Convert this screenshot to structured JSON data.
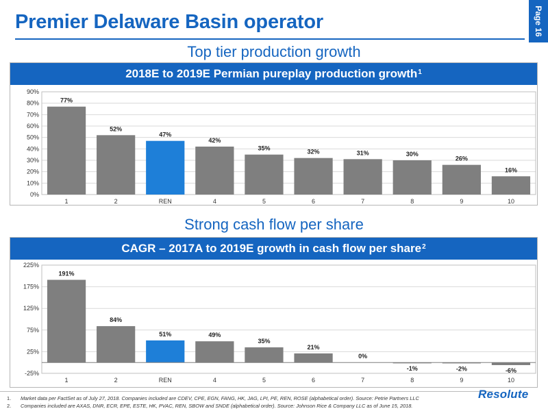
{
  "header": {
    "title": "Premier Delaware Basin operator",
    "page_label": "Page 16"
  },
  "sections": [
    {
      "heading": "Top tier production growth"
    },
    {
      "heading": "Strong cash flow per share"
    }
  ],
  "chart_data": [
    {
      "type": "bar",
      "title": "2018E to 2019E Permian pureplay production growth",
      "title_footnote": "1",
      "categories": [
        "1",
        "2",
        "REN",
        "4",
        "5",
        "6",
        "7",
        "8",
        "9",
        "10"
      ],
      "values": [
        77,
        52,
        47,
        42,
        35,
        32,
        31,
        30,
        26,
        16
      ],
      "value_labels": [
        "77%",
        "52%",
        "47%",
        "42%",
        "35%",
        "32%",
        "31%",
        "30%",
        "26%",
        "16%"
      ],
      "yticks": [
        0,
        10,
        20,
        30,
        40,
        50,
        60,
        70,
        80,
        90
      ],
      "ytick_labels": [
        "0%",
        "10%",
        "20%",
        "30%",
        "40%",
        "50%",
        "60%",
        "70%",
        "80%",
        "90%"
      ],
      "ylim": [
        0,
        90
      ],
      "highlight_category": "REN",
      "grid": true,
      "legend": false
    },
    {
      "type": "bar",
      "title": "CAGR – 2017A to 2019E growth in cash flow per share",
      "title_footnote": "2",
      "categories": [
        "1",
        "2",
        "REN",
        "4",
        "5",
        "6",
        "7",
        "8",
        "9",
        "10"
      ],
      "values": [
        191,
        84,
        51,
        49,
        35,
        21,
        0,
        -1,
        -2,
        -6
      ],
      "value_labels": [
        "191%",
        "84%",
        "51%",
        "49%",
        "35%",
        "21%",
        "0%",
        "-1%",
        "-2%",
        "-6%"
      ],
      "yticks": [
        -25,
        25,
        75,
        125,
        175,
        225
      ],
      "ytick_labels": [
        "-25%",
        "25%",
        "75%",
        "125%",
        "175%",
        "225%"
      ],
      "ylim": [
        -25,
        225
      ],
      "highlight_category": "REN",
      "grid": true,
      "legend": false
    }
  ],
  "colors": {
    "brand_blue": "#1565c0",
    "bar_gray": "#7f7f7f",
    "bar_highlight": "#1e7fd8",
    "grid": "#d9d9d9"
  },
  "footnotes": [
    {
      "num": "1.",
      "text": "Market data per FactSet as of July 27, 2018. Companies included are CDEV, CPE, EGN, FANG, HK, JAG, LPI, PE, REN, ROSE (alphabetical order). Source: Petrie Partners LLC"
    },
    {
      "num": "2.",
      "text": "Companies included are AXAS, DNR, ECR, EPE, ESTE, HK, PVAC, REN, SBOW and SNDE (alphabetical order). Source: Johnson Rice & Company LLC  as of June 15, 2018."
    }
  ],
  "logo": {
    "text": "Resolute"
  }
}
